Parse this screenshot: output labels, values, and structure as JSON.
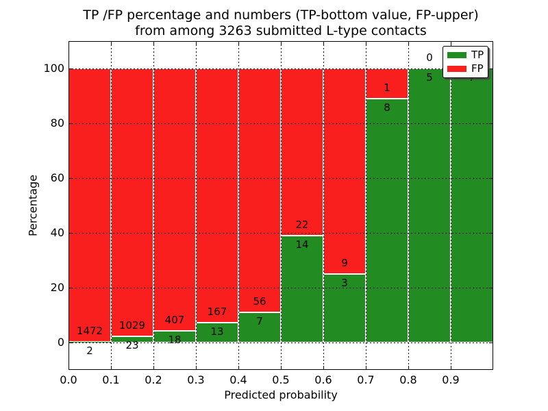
{
  "figure": {
    "title_line1": "TP /FP percentage and numbers (TP-bottom value, FP-upper)",
    "title_line2": "from among 3263 submitted L-type contacts",
    "xlabel": "Predicted probability",
    "ylabel": "Percentage"
  },
  "legend": {
    "position": "upper right",
    "items": [
      {
        "label": "TP",
        "color": "#228b22"
      },
      {
        "label": "FP",
        "color": "#fa1f1f"
      }
    ]
  },
  "chart_data": {
    "type": "bar",
    "stacked": true,
    "normalized_to_percent": true,
    "title": "TP /FP percentage and numbers (TP-bottom value, FP-upper)",
    "subtitle": "from among 3263 submitted L-type contacts",
    "total_contacts": 3263,
    "xlabel": "Predicted probability",
    "ylabel": "Percentage",
    "xlim": [
      0.0,
      1.0
    ],
    "ylim": [
      -10,
      110
    ],
    "bin_width": 0.1,
    "grid": true,
    "grid_style": "dotted",
    "bar_edge_color": "#ffffff",
    "legend_position": "upper right",
    "categories": [
      "0.0-0.1",
      "0.1-0.2",
      "0.2-0.3",
      "0.3-0.4",
      "0.4-0.5",
      "0.5-0.6",
      "0.6-0.7",
      "0.7-0.8",
      "0.8-0.9",
      "0.9-1.0"
    ],
    "series": [
      {
        "name": "TP",
        "color": "#228b22",
        "counts": [
          2,
          23,
          18,
          13,
          7,
          14,
          3,
          8,
          5,
          7
        ]
      },
      {
        "name": "FP",
        "color": "#fa1f1f",
        "counts": [
          1472,
          1029,
          407,
          167,
          56,
          22,
          9,
          1,
          0,
          0
        ]
      }
    ],
    "tp_percent": [
      0.14,
      2.19,
      4.24,
      7.22,
      11.11,
      38.89,
      25.0,
      88.89,
      100.0,
      100.0
    ],
    "xticks": [
      "0.0",
      "0.1",
      "0.2",
      "0.3",
      "0.4",
      "0.5",
      "0.6",
      "0.7",
      "0.8",
      "0.9"
    ],
    "yticks": [
      0,
      20,
      40,
      60,
      80,
      100
    ]
  }
}
